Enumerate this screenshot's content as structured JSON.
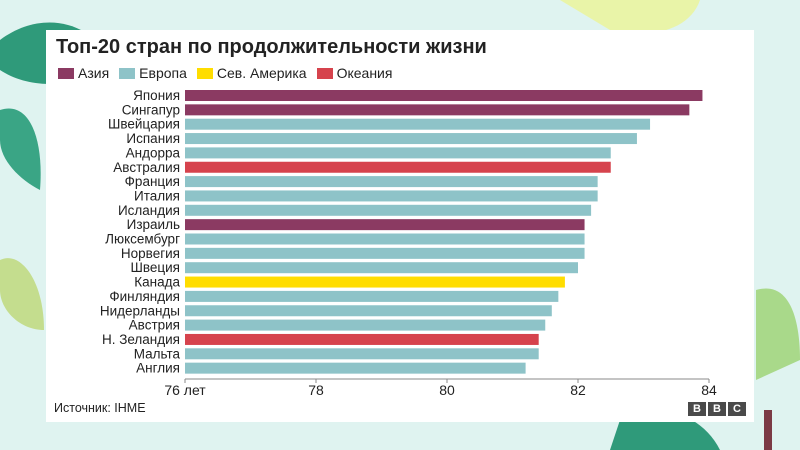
{
  "colors": {
    "asia": "#8b3a62",
    "europe": "#8ec3c8",
    "north_america": "#ffdd00",
    "oceania": "#d6434d",
    "axis": "#888888"
  },
  "chart_data": {
    "type": "bar",
    "orientation": "horizontal",
    "title": "Топ-20 стран по продолжительности жизни",
    "legend": [
      {
        "key": "asia",
        "label": "Азия"
      },
      {
        "key": "europe",
        "label": "Европа"
      },
      {
        "key": "north_america",
        "label": "Сев. Америка"
      },
      {
        "key": "oceania",
        "label": "Океания"
      }
    ],
    "legend_position": "top-left",
    "xlim": [
      76,
      84
    ],
    "ticks": [
      {
        "value": 76,
        "label": "76 лет"
      },
      {
        "value": 78,
        "label": "78"
      },
      {
        "value": 80,
        "label": "80"
      },
      {
        "value": 82,
        "label": "82"
      },
      {
        "value": 84,
        "label": "84"
      }
    ],
    "grid": false,
    "bars": [
      {
        "category": "Япония",
        "value": 83.9,
        "region": "asia"
      },
      {
        "category": "Сингапур",
        "value": 83.7,
        "region": "asia"
      },
      {
        "category": "Швейцария",
        "value": 83.1,
        "region": "europe"
      },
      {
        "category": "Испания",
        "value": 82.9,
        "region": "europe"
      },
      {
        "category": "Андорра",
        "value": 82.5,
        "region": "europe"
      },
      {
        "category": "Австралия",
        "value": 82.5,
        "region": "oceania"
      },
      {
        "category": "Франция",
        "value": 82.3,
        "region": "europe"
      },
      {
        "category": "Италия",
        "value": 82.3,
        "region": "europe"
      },
      {
        "category": "Исландия",
        "value": 82.2,
        "region": "europe"
      },
      {
        "category": "Израиль",
        "value": 82.1,
        "region": "asia"
      },
      {
        "category": "Люксембург",
        "value": 82.1,
        "region": "europe"
      },
      {
        "category": "Норвегия",
        "value": 82.1,
        "region": "europe"
      },
      {
        "category": "Швеция",
        "value": 82.0,
        "region": "europe"
      },
      {
        "category": "Канада",
        "value": 81.8,
        "region": "north_america"
      },
      {
        "category": "Финляндия",
        "value": 81.7,
        "region": "europe"
      },
      {
        "category": "Нидерланды",
        "value": 81.6,
        "region": "europe"
      },
      {
        "category": "Австрия",
        "value": 81.5,
        "region": "europe"
      },
      {
        "category": "Н. Зеландия",
        "value": 81.4,
        "region": "oceania"
      },
      {
        "category": "Мальта",
        "value": 81.4,
        "region": "europe"
      },
      {
        "category": "Англия",
        "value": 81.2,
        "region": "europe"
      }
    ]
  },
  "footer": {
    "source": "Источник: IHME",
    "logo_letters": [
      "B",
      "B",
      "C"
    ]
  }
}
